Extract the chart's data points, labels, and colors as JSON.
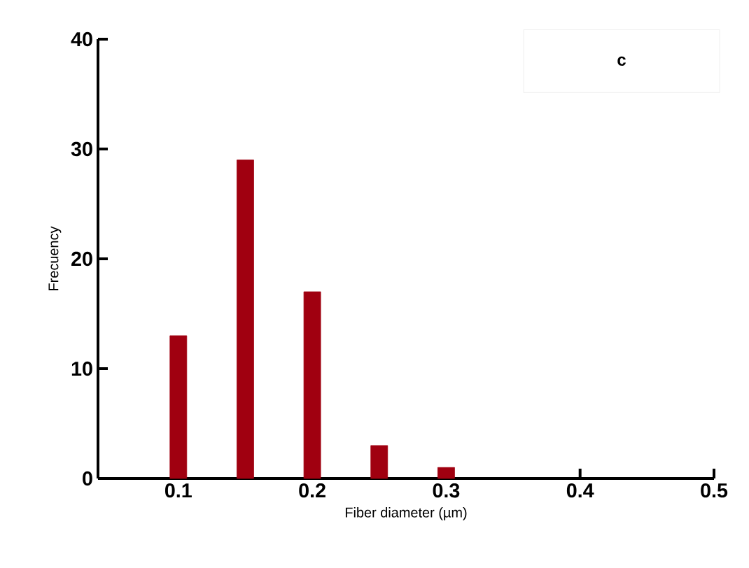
{
  "chart_data": {
    "type": "bar",
    "xlabel": "Fiber diameter (µm)",
    "ylabel": "Frecuency",
    "annotations": [
      "c"
    ],
    "x": [
      0.1,
      0.15,
      0.2,
      0.25,
      0.3
    ],
    "values": [
      13,
      29,
      17,
      3,
      1
    ],
    "color": "#a00010",
    "xlim": [
      0.04,
      0.5
    ],
    "ylim": [
      0,
      40
    ],
    "xticks": [
      0.1,
      0.2,
      0.3,
      0.4,
      0.5
    ],
    "yticks": [
      0,
      10,
      20,
      30,
      40
    ]
  }
}
